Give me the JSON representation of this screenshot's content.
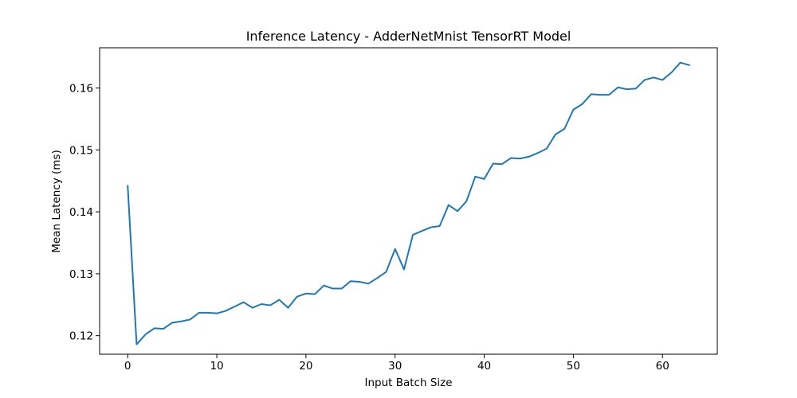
{
  "chart_data": {
    "type": "line",
    "title": "Inference Latency - AdderNetMnist TensorRT Model",
    "xlabel": "Input Batch Size",
    "ylabel": "Mean Latency (ms)",
    "xlim": [
      -3.15,
      66.15
    ],
    "ylim": [
      0.117,
      0.1665
    ],
    "xticks": [
      0,
      10,
      20,
      30,
      40,
      50,
      60
    ],
    "yticks": [
      0.12,
      0.13,
      0.14,
      0.15,
      0.16
    ],
    "xtick_labels": [
      "0",
      "10",
      "20",
      "30",
      "40",
      "50",
      "60"
    ],
    "ytick_labels": [
      "0.12",
      "0.13",
      "0.14",
      "0.15",
      "0.16"
    ],
    "grid": false,
    "series": [
      {
        "color": "#1f77b4",
        "x": [
          0,
          1,
          2,
          3,
          4,
          5,
          6,
          7,
          8,
          9,
          10,
          11,
          12,
          13,
          14,
          15,
          16,
          17,
          18,
          19,
          20,
          21,
          22,
          23,
          24,
          25,
          26,
          27,
          28,
          29,
          30,
          31,
          32,
          33,
          34,
          35,
          36,
          37,
          38,
          39,
          40,
          41,
          42,
          43,
          44,
          45,
          46,
          47,
          48,
          49,
          50,
          51,
          52,
          53,
          54,
          55,
          56,
          57,
          58,
          59,
          60,
          61,
          62,
          63
        ],
        "values": [
          0.1442,
          0.1186,
          0.1202,
          0.1212,
          0.1211,
          0.1221,
          0.1223,
          0.1226,
          0.1237,
          0.1237,
          0.1236,
          0.124,
          0.1247,
          0.1254,
          0.1245,
          0.1251,
          0.1249,
          0.1258,
          0.1245,
          0.1263,
          0.1268,
          0.1267,
          0.1281,
          0.1276,
          0.1276,
          0.1288,
          0.1287,
          0.1284,
          0.1293,
          0.1303,
          0.134,
          0.1307,
          0.1363,
          0.1369,
          0.1375,
          0.1377,
          0.1411,
          0.1401,
          0.1417,
          0.1457,
          0.1453,
          0.1478,
          0.1477,
          0.1487,
          0.1486,
          0.1489,
          0.1495,
          0.1502,
          0.1525,
          0.1534,
          0.1565,
          0.1574,
          0.159,
          0.1589,
          0.1589,
          0.1601,
          0.1598,
          0.1599,
          0.1613,
          0.1617,
          0.1613,
          0.1625,
          0.1641,
          0.1637
        ]
      }
    ]
  }
}
